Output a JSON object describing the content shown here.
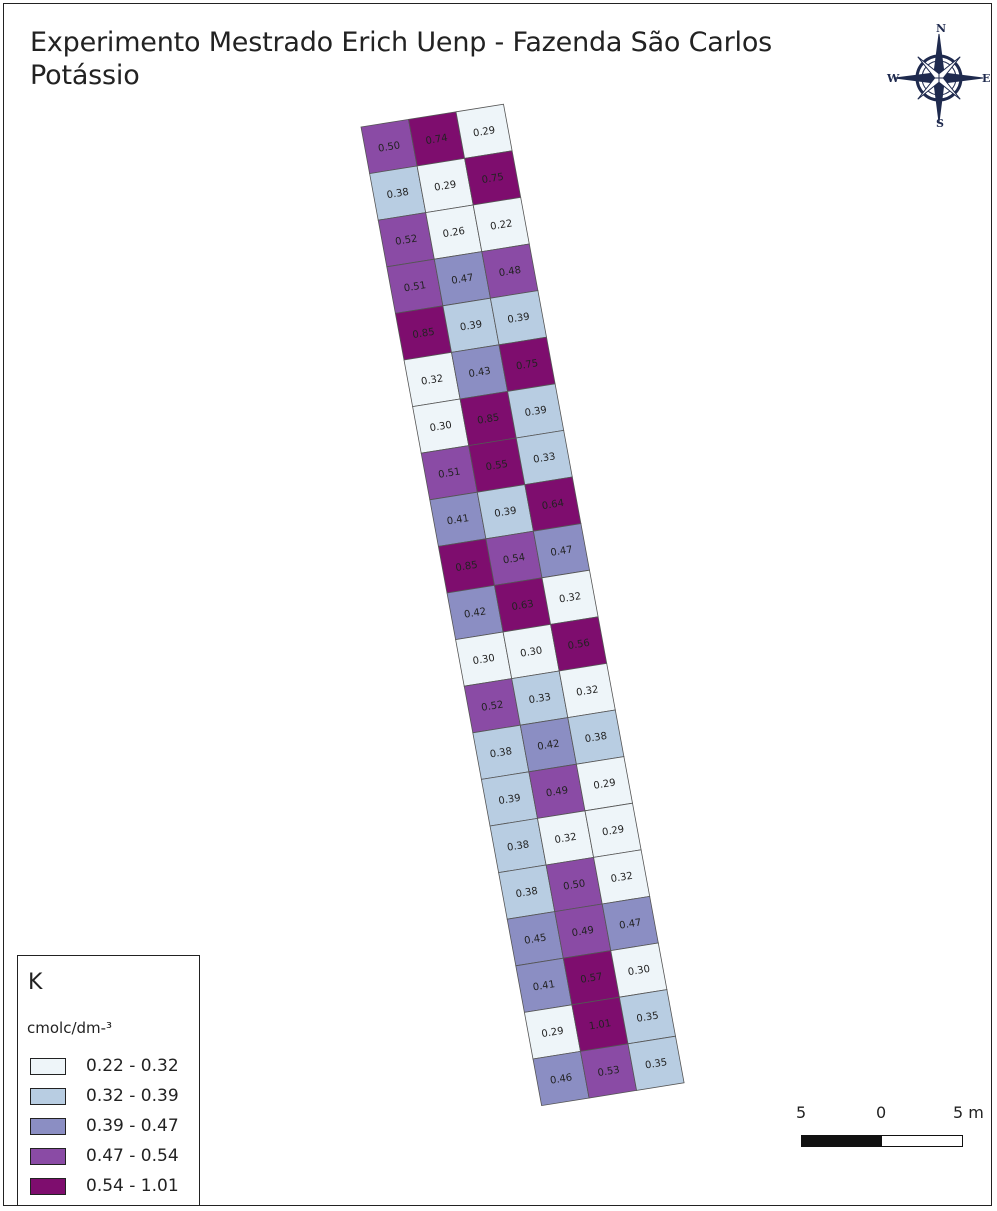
{
  "map": {
    "title_line1": "Experimento Mestrado Erich Uenp - Fazenda São Carlos",
    "title_line2": "Potássio"
  },
  "compass": {
    "n": "N",
    "s": "S",
    "e": "E",
    "w": "W"
  },
  "legend": {
    "title": "K",
    "unit": "cmolc/dm-³",
    "classes": [
      {
        "label": "0.22 - 0.32",
        "color": "#eef5f9"
      },
      {
        "label": "0.32 - 0.39",
        "color": "#b8cde2"
      },
      {
        "label": "0.39 - 0.47",
        "color": "#8b8ec3"
      },
      {
        "label": "0.47 - 0.54",
        "color": "#8a4ba5"
      },
      {
        "label": "0.54 - 1.01",
        "color": "#7e0d6e"
      }
    ]
  },
  "plots": [
    [
      "0.50",
      "0.74",
      "0.29"
    ],
    [
      "0.38",
      "0.29",
      "0.75"
    ],
    [
      "0.52",
      "0.26",
      "0.22"
    ],
    [
      "0.51",
      "0.47",
      "0.48"
    ],
    [
      "0.85",
      "0.39",
      "0.39"
    ],
    [
      "0.32",
      "0.43",
      "0.75"
    ],
    [
      "0.30",
      "0.85",
      "0.39"
    ],
    [
      "0.51",
      "0.55",
      "0.33"
    ],
    [
      "0.41",
      "0.39",
      "0.64"
    ],
    [
      "0.85",
      "0.54",
      "0.47"
    ],
    [
      "0.42",
      "0.63",
      "0.32"
    ],
    [
      "0.30",
      "0.30",
      "0.56"
    ],
    [
      "0.52",
      "0.33",
      "0.32"
    ],
    [
      "0.38",
      "0.42",
      "0.38"
    ],
    [
      "0.39",
      "0.49",
      "0.29"
    ],
    [
      "0.38",
      "0.32",
      "0.29"
    ],
    [
      "0.38",
      "0.50",
      "0.32"
    ],
    [
      "0.45",
      "0.49",
      "0.47"
    ],
    [
      "0.41",
      "0.57",
      "0.30"
    ],
    [
      "0.29",
      "1.01",
      "0.35"
    ],
    [
      "0.46",
      "0.53",
      "0.35"
    ]
  ],
  "scalebar": {
    "left_label": "5",
    "mid_label": "0",
    "right_label": "5 m"
  }
}
